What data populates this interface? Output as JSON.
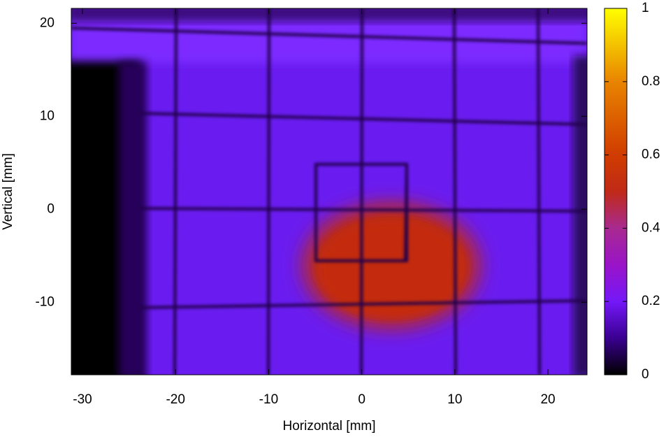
{
  "chart_data": {
    "type": "heatmap",
    "xlabel": "Horizontal [mm]",
    "ylabel": "Vertical [mm]",
    "xlim": [
      -31.2,
      24.2
    ],
    "ylim": [
      -17.8,
      21.6
    ],
    "xticks": [
      -30,
      -20,
      -10,
      0,
      10,
      20
    ],
    "yticks": [
      -10,
      0,
      10,
      20
    ],
    "cblim": [
      0,
      1
    ],
    "cbticks": [
      0,
      0.2,
      0.4,
      0.6,
      0.8,
      1
    ],
    "palette": [
      {
        "value": 0,
        "color": "#000000"
      },
      {
        "value": 0.1,
        "color": "#3a0090"
      },
      {
        "value": 0.2,
        "color": "#7418f8"
      },
      {
        "value": 0.3,
        "color": "#9a14c8"
      },
      {
        "value": 0.4,
        "color": "#a82a90"
      },
      {
        "value": 0.5,
        "color": "#c02a18"
      },
      {
        "value": 0.6,
        "color": "#d03c00"
      },
      {
        "value": 0.8,
        "color": "#e88400"
      },
      {
        "value": 1,
        "color": "#ffff00"
      }
    ]
  }
}
